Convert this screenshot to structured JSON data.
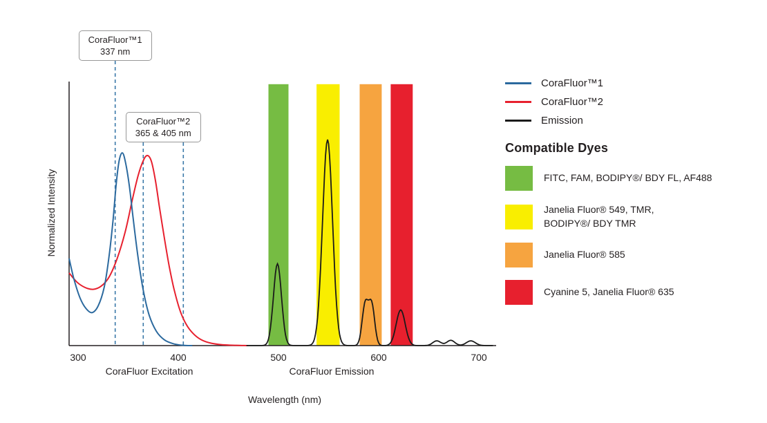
{
  "figure": {
    "wavelength_label": "Wavelength (nm)",
    "intensity_label": "Normalized Intensity",
    "excitation_caption": "CoraFluor Excitation",
    "emission_caption": "CoraFluor Emission"
  },
  "annotations": [
    {
      "line1": "CoraFluor™1",
      "line2": "337 nm",
      "markers_nm": [
        337
      ]
    },
    {
      "line1": "CoraFluor™2",
      "line2": "365 & 405 nm",
      "markers_nm": [
        365,
        405
      ]
    }
  ],
  "legend": {
    "series": [
      {
        "label": "CoraFluor™1",
        "color": "#2b699e"
      },
      {
        "label": "CoraFluor™2",
        "color": "#e7202e"
      },
      {
        "label": "Emission",
        "color": "#1a1a1a"
      }
    ],
    "heading": "Compatible Dyes",
    "dyes": [
      {
        "name": "green",
        "color": "#76bc43",
        "lines": [
          "FITC, FAM, BODIPY®/ BDY FL, AF488"
        ]
      },
      {
        "name": "yellow",
        "color": "#f9ee00",
        "lines": [
          "Janelia Fluor® 549, TMR,",
          "BODIPY®/ BDY TMR"
        ]
      },
      {
        "name": "orange",
        "color": "#f6a440",
        "lines": [
          "Janelia Fluor® 585"
        ]
      },
      {
        "name": "red",
        "color": "#e7202e",
        "lines": [
          "Cyanine 5, Janelia Fluor® 635"
        ]
      }
    ]
  },
  "chart_data": {
    "type": "line",
    "title": "",
    "xlabel": "Wavelength (nm)",
    "ylabel": "Normalized Intensity",
    "x_ticks": [
      300,
      400,
      500,
      600,
      700
    ],
    "x_range": [
      291,
      716
    ],
    "y_range": [
      0,
      1
    ],
    "grid": false,
    "legend_position": "right",
    "axis_color": "#231f20",
    "marker_color": "#3a78a8",
    "excitation_markers": [
      {
        "nm": 337,
        "callout": 0
      },
      {
        "nm": 365,
        "callout": 1
      },
      {
        "nm": 405,
        "callout": 1
      }
    ],
    "bands": [
      {
        "name": "green",
        "color": "#76bc43",
        "from_nm": 490,
        "to_nm": 510,
        "top": 0.99
      },
      {
        "name": "yellow",
        "color": "#f9ee00",
        "from_nm": 538,
        "to_nm": 561,
        "top": 0.99
      },
      {
        "name": "orange",
        "color": "#f6a440",
        "from_nm": 581,
        "to_nm": 603,
        "top": 0.99
      },
      {
        "name": "red",
        "color": "#e7202e",
        "from_nm": 612,
        "to_nm": 634,
        "top": 0.99
      }
    ],
    "series": [
      {
        "name": "CoraFluor™1 excitation",
        "color": "#2b699e",
        "points": [
          [
            291,
            0.33
          ],
          [
            296,
            0.25
          ],
          [
            302,
            0.18
          ],
          [
            308,
            0.14
          ],
          [
            314,
            0.125
          ],
          [
            320,
            0.15
          ],
          [
            326,
            0.22
          ],
          [
            331,
            0.34
          ],
          [
            335,
            0.48
          ],
          [
            338,
            0.61
          ],
          [
            341,
            0.7
          ],
          [
            344,
            0.73
          ],
          [
            347,
            0.7
          ],
          [
            351,
            0.61
          ],
          [
            355,
            0.48
          ],
          [
            360,
            0.33
          ],
          [
            365,
            0.21
          ],
          [
            371,
            0.115
          ],
          [
            378,
            0.055
          ],
          [
            386,
            0.022
          ],
          [
            395,
            0.007
          ],
          [
            405,
            0.001
          ],
          [
            414,
            0
          ]
        ]
      },
      {
        "name": "CoraFluor™2 excitation",
        "color": "#e7202e",
        "points": [
          [
            291,
            0.275
          ],
          [
            299,
            0.24
          ],
          [
            307,
            0.22
          ],
          [
            315,
            0.213
          ],
          [
            323,
            0.225
          ],
          [
            331,
            0.26
          ],
          [
            339,
            0.33
          ],
          [
            347,
            0.43
          ],
          [
            354,
            0.55
          ],
          [
            360,
            0.645
          ],
          [
            365,
            0.7
          ],
          [
            369,
            0.72
          ],
          [
            373,
            0.7
          ],
          [
            377,
            0.63
          ],
          [
            381,
            0.53
          ],
          [
            386,
            0.41
          ],
          [
            391,
            0.3
          ],
          [
            396,
            0.21
          ],
          [
            402,
            0.13
          ],
          [
            408,
            0.08
          ],
          [
            415,
            0.045
          ],
          [
            423,
            0.022
          ],
          [
            433,
            0.009
          ],
          [
            445,
            0.003
          ],
          [
            458,
            0.001
          ],
          [
            470,
            0
          ]
        ]
      },
      {
        "name": "Emission",
        "color": "#1a1a1a",
        "range_nm": [
          468,
          714
        ],
        "peaks": [
          {
            "center": 499,
            "height": 0.31,
            "sigma": 4
          },
          {
            "center": 549,
            "height": 0.78,
            "sigma": 5
          },
          {
            "center": 586.5,
            "height": 0.155,
            "sigma": 3
          },
          {
            "center": 593,
            "height": 0.155,
            "sigma": 3
          },
          {
            "center": 622,
            "height": 0.135,
            "sigma": 4.5
          },
          {
            "center": 658,
            "height": 0.018,
            "sigma": 4
          },
          {
            "center": 672,
            "height": 0.02,
            "sigma": 4
          },
          {
            "center": 692,
            "height": 0.018,
            "sigma": 4.5
          }
        ]
      }
    ]
  }
}
